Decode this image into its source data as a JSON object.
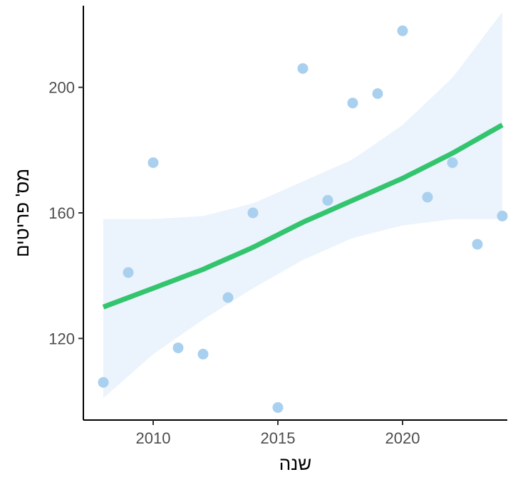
{
  "chart_data": {
    "type": "scatter",
    "title": "",
    "xlabel": "שנה",
    "ylabel": "מס' פריטים",
    "xlim": [
      2007.2,
      2024.2
    ],
    "ylim": [
      94,
      226
    ],
    "x_ticks": [
      2010,
      2015,
      2020
    ],
    "y_ticks": [
      120,
      160,
      200
    ],
    "grid": false,
    "legend": "none",
    "points": [
      {
        "x": 2008,
        "y": 106
      },
      {
        "x": 2009,
        "y": 141
      },
      {
        "x": 2010,
        "y": 176
      },
      {
        "x": 2011,
        "y": 117
      },
      {
        "x": 2012,
        "y": 115
      },
      {
        "x": 2013,
        "y": 133
      },
      {
        "x": 2014,
        "y": 160
      },
      {
        "x": 2015,
        "y": 98
      },
      {
        "x": 2016,
        "y": 206
      },
      {
        "x": 2017,
        "y": 164
      },
      {
        "x": 2018,
        "y": 195
      },
      {
        "x": 2019,
        "y": 198
      },
      {
        "x": 2020,
        "y": 218
      },
      {
        "x": 2021,
        "y": 165
      },
      {
        "x": 2022,
        "y": 176
      },
      {
        "x": 2023,
        "y": 150
      },
      {
        "x": 2024,
        "y": 159
      }
    ],
    "trend": {
      "x": [
        2008,
        2010,
        2012,
        2014,
        2016,
        2018,
        2020,
        2022,
        2024
      ],
      "fit": [
        130,
        136,
        142,
        149,
        157,
        164,
        171,
        179,
        188
      ],
      "lower": [
        101,
        115,
        126,
        136,
        145,
        152,
        156,
        158,
        158
      ],
      "upper": [
        158,
        158,
        159,
        163,
        170,
        177,
        188,
        203,
        224
      ]
    },
    "colors": {
      "points": "#a9d0ee",
      "trend_line": "#33c46e",
      "confidence_band": "#ebf3fc",
      "axis": "#000000",
      "tick_label": "#4d4d4d"
    }
  }
}
